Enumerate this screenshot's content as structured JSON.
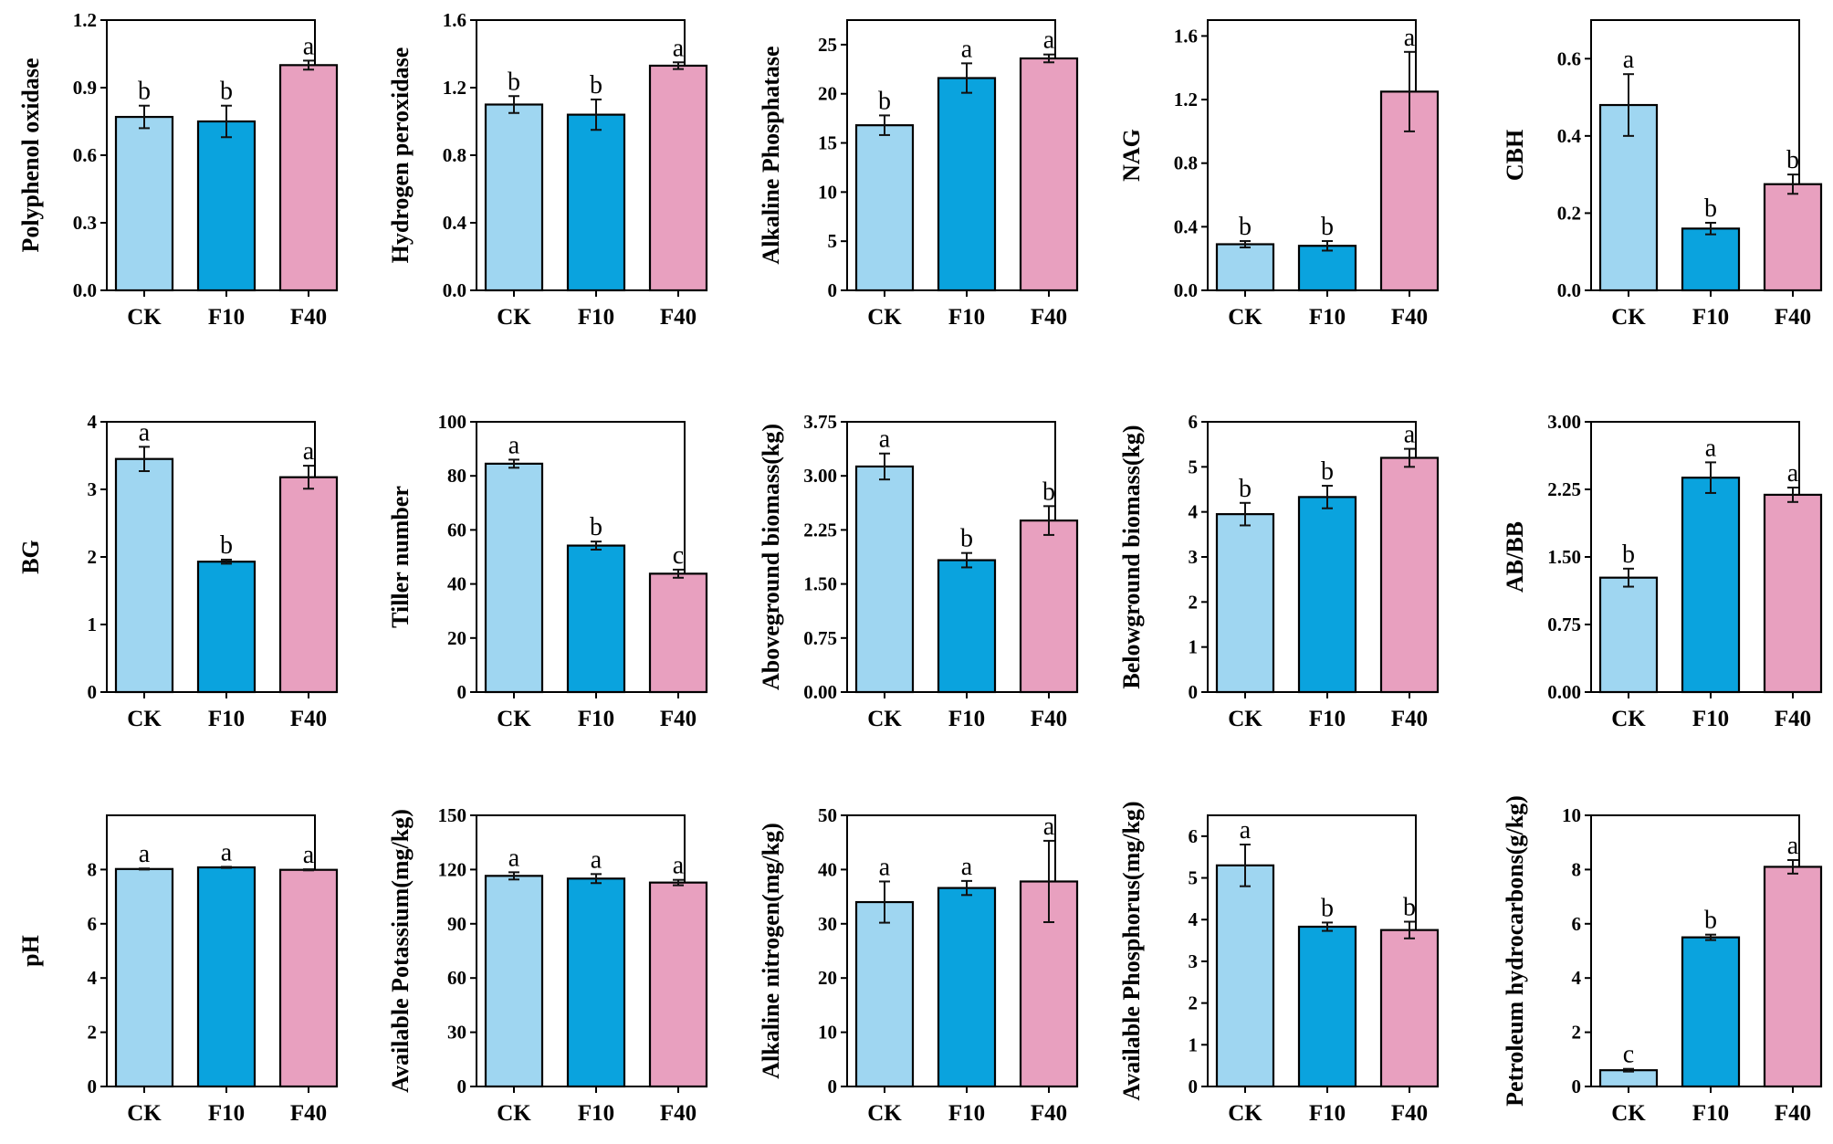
{
  "colors": {
    "CK": "#9fd6f1",
    "F10": "#0aa3de",
    "F40": "#e8a0bf",
    "frame": "#000000"
  },
  "chart_data": [
    {
      "type": "bar",
      "ylabel": "Polyphenol oxidase",
      "categories": [
        "CK",
        "F10",
        "F40"
      ],
      "values": [
        0.77,
        0.75,
        1.0
      ],
      "errors": [
        0.05,
        0.07,
        0.02
      ],
      "labels": [
        "b",
        "b",
        "a"
      ],
      "ylim": [
        0,
        1.2
      ],
      "yticks": [
        "0.0",
        "0.3",
        "0.6",
        "0.9",
        "1.2"
      ]
    },
    {
      "type": "bar",
      "ylabel": "Hydrogen peroxidase",
      "categories": [
        "CK",
        "F10",
        "F40"
      ],
      "values": [
        1.1,
        1.04,
        1.33
      ],
      "errors": [
        0.05,
        0.09,
        0.02
      ],
      "labels": [
        "b",
        "b",
        "a"
      ],
      "ylim": [
        0,
        1.6
      ],
      "yticks": [
        "0.0",
        "0.4",
        "0.8",
        "1.2",
        "1.6"
      ]
    },
    {
      "type": "bar",
      "ylabel": "Alkaline Phosphatase",
      "categories": [
        "CK",
        "F10",
        "F40"
      ],
      "values": [
        16.8,
        21.6,
        23.6
      ],
      "errors": [
        1.0,
        1.5,
        0.4
      ],
      "labels": [
        "b",
        "a",
        "a"
      ],
      "ylim": [
        0,
        27.5
      ],
      "yticks": [
        "0",
        "5",
        "10",
        "15",
        "20",
        "25"
      ]
    },
    {
      "type": "bar",
      "ylabel": "NAG",
      "categories": [
        "CK",
        "F10",
        "F40"
      ],
      "values": [
        0.29,
        0.28,
        1.25
      ],
      "errors": [
        0.02,
        0.03,
        0.25
      ],
      "labels": [
        "b",
        "b",
        "a"
      ],
      "ylim": [
        0,
        1.7
      ],
      "yticks": [
        "0.0",
        "0.4",
        "0.8",
        "1.2",
        "1.6"
      ]
    },
    {
      "type": "bar",
      "ylabel": "CBH",
      "categories": [
        "CK",
        "F10",
        "F40"
      ],
      "values": [
        0.48,
        0.16,
        0.275
      ],
      "errors": [
        0.08,
        0.015,
        0.025
      ],
      "labels": [
        "a",
        "b",
        "b"
      ],
      "ylim": [
        0,
        0.7
      ],
      "yticks": [
        "0.0",
        "0.2",
        "0.4",
        "0.6"
      ]
    },
    {
      "type": "bar",
      "ylabel": "BG",
      "categories": [
        "CK",
        "F10",
        "F40"
      ],
      "values": [
        3.45,
        1.93,
        3.18
      ],
      "errors": [
        0.18,
        0.03,
        0.17
      ],
      "labels": [
        "a",
        "b",
        "a"
      ],
      "ylim": [
        0,
        4
      ],
      "yticks": [
        "0",
        "1",
        "2",
        "3",
        "4"
      ]
    },
    {
      "type": "bar",
      "ylabel": "Tiller number",
      "categories": [
        "CK",
        "F10",
        "F40"
      ],
      "values": [
        84.5,
        54.2,
        43.8
      ],
      "errors": [
        1.5,
        1.5,
        1.5
      ],
      "labels": [
        "a",
        "b",
        "c"
      ],
      "ylim": [
        0,
        100
      ],
      "yticks": [
        "0",
        "20",
        "40",
        "60",
        "80",
        "100"
      ]
    },
    {
      "type": "bar",
      "ylabel": "Aboveground biomass(kg)",
      "categories": [
        "CK",
        "F10",
        "F40"
      ],
      "values": [
        3.13,
        1.83,
        2.38
      ],
      "errors": [
        0.18,
        0.1,
        0.2
      ],
      "labels": [
        "a",
        "b",
        "b"
      ],
      "ylim": [
        0,
        3.75
      ],
      "yticks": [
        "0.00",
        "0.75",
        "1.50",
        "2.25",
        "3.00",
        "3.75"
      ]
    },
    {
      "type": "bar",
      "ylabel": "Belowground biomass(kg)",
      "categories": [
        "CK",
        "F10",
        "F40"
      ],
      "values": [
        3.95,
        4.33,
        5.2
      ],
      "errors": [
        0.25,
        0.25,
        0.2
      ],
      "labels": [
        "b",
        "b",
        "a"
      ],
      "ylim": [
        0,
        6
      ],
      "yticks": [
        "0",
        "1",
        "2",
        "3",
        "4",
        "5",
        "6"
      ]
    },
    {
      "type": "bar",
      "ylabel": "AB/BB",
      "categories": [
        "CK",
        "F10",
        "F40"
      ],
      "values": [
        1.27,
        2.38,
        2.19
      ],
      "errors": [
        0.1,
        0.17,
        0.08
      ],
      "labels": [
        "b",
        "a",
        "a"
      ],
      "ylim": [
        0,
        3
      ],
      "yticks": [
        "0.00",
        "0.75",
        "1.50",
        "2.25",
        "3.00"
      ]
    },
    {
      "type": "bar",
      "ylabel": "pH",
      "categories": [
        "CK",
        "F10",
        "F40"
      ],
      "values": [
        8.02,
        8.08,
        7.99
      ],
      "errors": [
        0.02,
        0.02,
        0.02
      ],
      "labels": [
        "a",
        "a",
        "a"
      ],
      "ylim": [
        0,
        10
      ],
      "yticks": [
        "0",
        "2",
        "4",
        "6",
        "8"
      ]
    },
    {
      "type": "bar",
      "ylabel": "Available Potassium(mg/kg)",
      "categories": [
        "CK",
        "F10",
        "F40"
      ],
      "values": [
        116.5,
        115.0,
        112.8
      ],
      "errors": [
        2.0,
        2.5,
        1.5
      ],
      "labels": [
        "a",
        "a",
        "a"
      ],
      "ylim": [
        0,
        150
      ],
      "yticks": [
        "0",
        "30",
        "60",
        "90",
        "120",
        "150"
      ]
    },
    {
      "type": "bar",
      "ylabel": "Alkaline nitrogen(mg/kg)",
      "categories": [
        "CK",
        "F10",
        "F40"
      ],
      "values": [
        34.0,
        36.6,
        37.8
      ],
      "errors": [
        3.8,
        1.3,
        7.5
      ],
      "labels": [
        "a",
        "a",
        "a"
      ],
      "ylim": [
        0,
        50
      ],
      "yticks": [
        "0",
        "10",
        "20",
        "30",
        "40",
        "50"
      ]
    },
    {
      "type": "bar",
      "ylabel": "Available Phosphorus(mg/kg)",
      "categories": [
        "CK",
        "F10",
        "F40"
      ],
      "values": [
        5.3,
        3.83,
        3.75
      ],
      "errors": [
        0.5,
        0.1,
        0.2
      ],
      "labels": [
        "a",
        "b",
        "b"
      ],
      "ylim": [
        0,
        6.5
      ],
      "yticks": [
        "0",
        "1",
        "2",
        "3",
        "4",
        "5",
        "6"
      ]
    },
    {
      "type": "bar",
      "ylabel": "Petroleum hydrocarbons(g/kg)",
      "categories": [
        "CK",
        "F10",
        "F40"
      ],
      "values": [
        0.6,
        5.5,
        8.1
      ],
      "errors": [
        0.05,
        0.1,
        0.25
      ],
      "labels": [
        "c",
        "b",
        "a"
      ],
      "ylim": [
        0,
        10
      ],
      "yticks": [
        "0",
        "2",
        "4",
        "6",
        "8",
        "10"
      ]
    }
  ]
}
